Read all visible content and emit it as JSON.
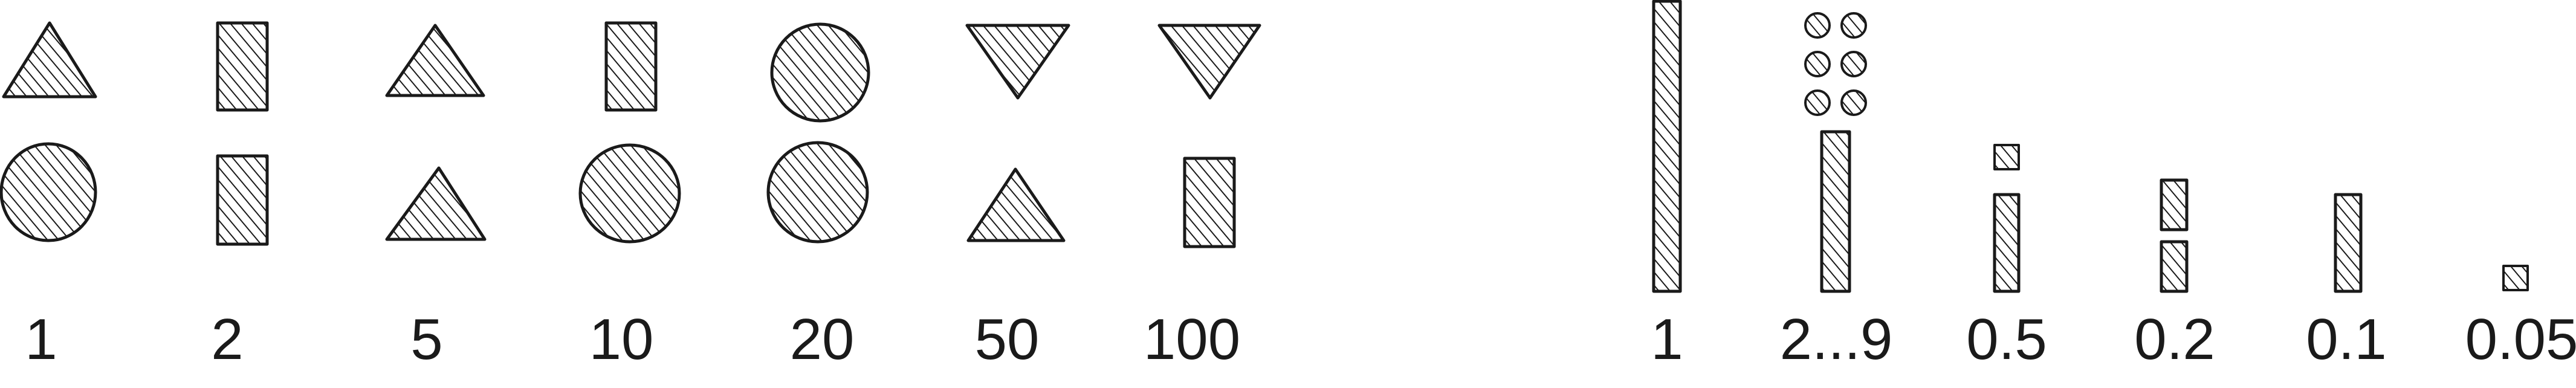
{
  "left_group": {
    "labels": [
      "1",
      "2",
      "5",
      "10",
      "20",
      "50",
      "100"
    ],
    "columns": [
      {
        "label": "1",
        "top": "triangle-up-icon",
        "bottom": "circle-icon"
      },
      {
        "label": "2",
        "top": "rectangle-icon",
        "bottom": "rectangle-icon"
      },
      {
        "label": "5",
        "top": "triangle-up-icon",
        "bottom": "triangle-up-icon"
      },
      {
        "label": "10",
        "top": "rectangle-icon",
        "bottom": "circle-icon"
      },
      {
        "label": "20",
        "top": "circle-icon",
        "bottom": "circle-icon"
      },
      {
        "label": "50",
        "top": "triangle-down-icon",
        "bottom": "triangle-up-icon"
      },
      {
        "label": "100",
        "top": "triangle-down-icon",
        "bottom": "rectangle-icon"
      }
    ]
  },
  "right_group": {
    "labels": [
      "1",
      "2...9",
      "0.5",
      "0.2",
      "0.1",
      "0.05"
    ],
    "columns": [
      {
        "label": "1",
        "glyph": "tall-bar-icon"
      },
      {
        "label": "2...9",
        "glyph": "dots-over-bar-icon"
      },
      {
        "label": "0.5",
        "glyph": "square-over-bar-icon"
      },
      {
        "label": "0.2",
        "glyph": "split-bar-icon"
      },
      {
        "label": "0.1",
        "glyph": "short-bar-icon"
      },
      {
        "label": "0.05",
        "glyph": "small-square-icon"
      }
    ]
  },
  "colors": {
    "ink": "#1a1a1a",
    "background": "#ffffff"
  }
}
